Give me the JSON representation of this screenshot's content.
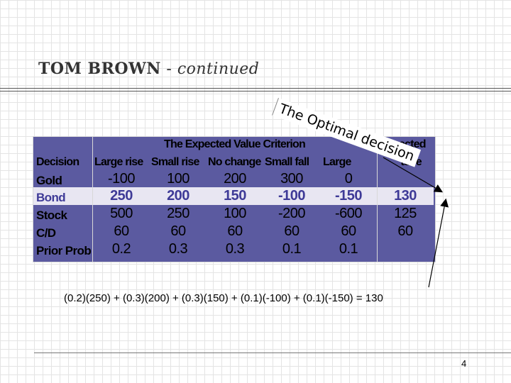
{
  "slide": {
    "title_main": "TOM  BROWN",
    "title_sub": " - continued",
    "page_number": "4"
  },
  "callout": {
    "text": "The Optimal decision"
  },
  "table": {
    "caption": "The Expected Value Criterion",
    "columns": [
      "Decision",
      "Large rise",
      "Small rise",
      "No change",
      "Small fall",
      "Large fall",
      "Expected Value"
    ],
    "visible_col_labels": [
      "Decision",
      "Large rise",
      "Small rise",
      "No change",
      "Small fall",
      "Large",
      "Expected",
      "alue"
    ],
    "rows": [
      {
        "label": "Gold",
        "values": [
          "-100",
          "100",
          "200",
          "300",
          "0",
          ""
        ]
      },
      {
        "label": "Bond",
        "values": [
          "250",
          "200",
          "150",
          "-100",
          "-150",
          "130"
        ],
        "highlight": true
      },
      {
        "label": "Stock",
        "values": [
          "500",
          "250",
          "100",
          "-200",
          "-600",
          "125"
        ]
      },
      {
        "label": "C/D",
        "values": [
          "60",
          "60",
          "60",
          "60",
          "60",
          "60"
        ]
      },
      {
        "label": "Prior Prob",
        "values": [
          "0.2",
          "0.3",
          "0.3",
          "0.1",
          "0.1",
          ""
        ]
      }
    ]
  },
  "formula": {
    "text": "(0.2)(250) + (0.3)(200) + (0.3)(150) + (0.1)(-100) + (0.1)(-150) = 130"
  },
  "colors": {
    "table_bg": "#5b5aa0",
    "bond_band": "#e8e6f2",
    "bond_text": "#3e3a97"
  }
}
